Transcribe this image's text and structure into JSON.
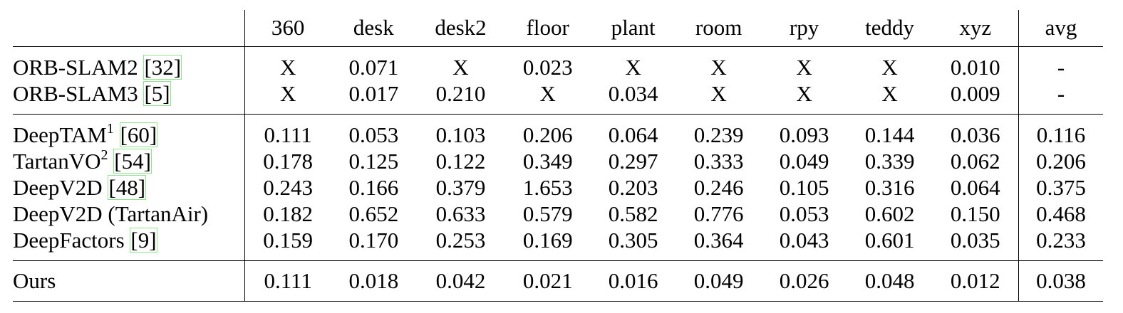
{
  "columns": [
    "360",
    "desk",
    "desk2",
    "floor",
    "plant",
    "room",
    "rpy",
    "teddy",
    "xyz",
    "avg"
  ],
  "groups": [
    [
      {
        "name": "ORB-SLAM2",
        "sup": "",
        "cite": "[32]",
        "values": [
          "X",
          "0.071",
          "X",
          "0.023",
          "X",
          "X",
          "X",
          "X",
          "0.010",
          "-"
        ],
        "bold": [
          false,
          false,
          false,
          false,
          false,
          false,
          false,
          false,
          false,
          false
        ]
      },
      {
        "name": "ORB-SLAM3",
        "sup": "",
        "cite": "[5]",
        "values": [
          "X",
          "0.017",
          "0.210",
          "X",
          "0.034",
          "X",
          "X",
          "X",
          "0.009",
          "-"
        ],
        "bold": [
          false,
          true,
          false,
          false,
          false,
          false,
          false,
          false,
          true,
          false
        ]
      }
    ],
    [
      {
        "name": "DeepTAM",
        "sup": "1",
        "cite": "[60]",
        "values": [
          "0.111",
          "0.053",
          "0.103",
          "0.206",
          "0.064",
          "0.239",
          "0.093",
          "0.144",
          "0.036",
          "0.116"
        ],
        "bold": [
          false,
          false,
          false,
          false,
          false,
          false,
          false,
          false,
          false,
          false
        ]
      },
      {
        "name": "TartanVO",
        "sup": "2",
        "cite": "[54]",
        "values": [
          "0.178",
          "0.125",
          "0.122",
          "0.349",
          "0.297",
          "0.333",
          "0.049",
          "0.339",
          "0.062",
          "0.206"
        ],
        "bold": [
          false,
          false,
          false,
          false,
          false,
          false,
          false,
          false,
          false,
          false
        ]
      },
      {
        "name": "DeepV2D",
        "sup": "",
        "cite": "[48]",
        "values": [
          "0.243",
          "0.166",
          "0.379",
          "1.653",
          "0.203",
          "0.246",
          "0.105",
          "0.316",
          "0.064",
          "0.375"
        ],
        "bold": [
          false,
          false,
          false,
          false,
          false,
          false,
          false,
          false,
          false,
          false
        ]
      },
      {
        "name": "DeepV2D (TartanAir)",
        "sup": "",
        "cite": "",
        "values": [
          "0.182",
          "0.652",
          "0.633",
          "0.579",
          "0.582",
          "0.776",
          "0.053",
          "0.602",
          "0.150",
          "0.468"
        ],
        "bold": [
          false,
          false,
          false,
          false,
          false,
          false,
          false,
          false,
          false,
          false
        ]
      },
      {
        "name": "DeepFactors",
        "sup": "",
        "cite": "[9]",
        "values": [
          "0.159",
          "0.170",
          "0.253",
          "0.169",
          "0.305",
          "0.364",
          "0.043",
          "0.601",
          "0.035",
          "0.233"
        ],
        "bold": [
          false,
          false,
          false,
          false,
          false,
          false,
          false,
          false,
          false,
          false
        ]
      }
    ],
    [
      {
        "name": "Ours",
        "sup": "",
        "cite": "",
        "values": [
          "0.111",
          "0.018",
          "0.042",
          "0.021",
          "0.016",
          "0.049",
          "0.026",
          "0.048",
          "0.012",
          "0.038"
        ],
        "bold": [
          true,
          false,
          true,
          true,
          true,
          true,
          true,
          true,
          false,
          true
        ]
      }
    ]
  ],
  "colors": {
    "cite_box": "#8fe38f",
    "rule": "#000000"
  }
}
